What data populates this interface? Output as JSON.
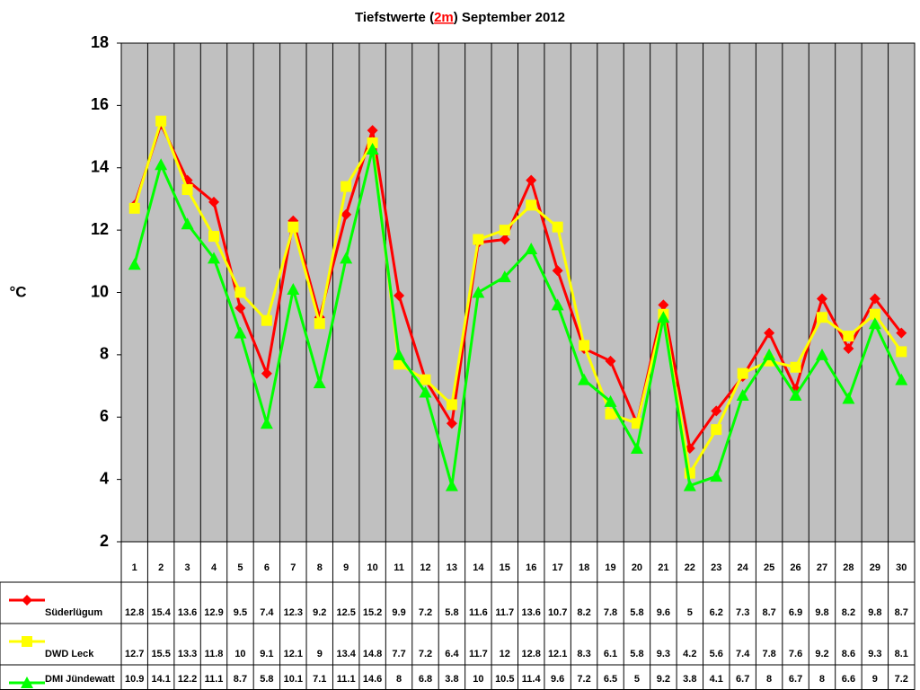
{
  "chart_data": {
    "type": "line",
    "title_prefix": "Tiefstwerte (",
    "title_highlight": "2m",
    "title_suffix": ") September 2012",
    "y_label": "°C",
    "categories": [
      "1",
      "2",
      "3",
      "4",
      "5",
      "6",
      "7",
      "8",
      "9",
      "10",
      "11",
      "12",
      "13",
      "14",
      "15",
      "16",
      "17",
      "18",
      "19",
      "20",
      "21",
      "22",
      "23",
      "24",
      "25",
      "26",
      "27",
      "28",
      "29",
      "30"
    ],
    "ylim": [
      2,
      18
    ],
    "yticks": [
      2,
      4,
      6,
      8,
      10,
      12,
      14,
      16,
      18
    ],
    "plot_background": "#c0c0c0",
    "series": [
      {
        "name": "Süderlügum",
        "color": "#ff0000",
        "marker": "diamond",
        "values": [
          12.8,
          15.4,
          13.6,
          12.9,
          9.5,
          7.4,
          12.3,
          9.2,
          12.5,
          15.2,
          9.9,
          7.2,
          5.8,
          11.6,
          11.7,
          13.6,
          10.7,
          8.2,
          7.8,
          5.8,
          9.6,
          5,
          6.2,
          7.3,
          8.7,
          6.9,
          9.8,
          8.2,
          9.8,
          8.7
        ]
      },
      {
        "name": "DWD Leck",
        "color": "#ffff00",
        "marker": "square",
        "values": [
          12.7,
          15.5,
          13.3,
          11.8,
          10,
          9.1,
          12.1,
          9,
          13.4,
          14.8,
          7.7,
          7.2,
          6.4,
          11.7,
          12,
          12.8,
          12.1,
          8.3,
          6.1,
          5.8,
          9.3,
          4.2,
          5.6,
          7.4,
          7.8,
          7.6,
          9.2,
          8.6,
          9.3,
          8.1
        ]
      },
      {
        "name": "DMI Jündewatt",
        "color": "#00ff00",
        "marker": "triangle",
        "values": [
          10.9,
          14.1,
          12.2,
          11.1,
          8.7,
          5.8,
          10.1,
          7.1,
          11.1,
          14.6,
          8,
          6.8,
          3.8,
          10,
          10.5,
          11.4,
          9.6,
          7.2,
          6.5,
          5,
          9.2,
          3.8,
          4.1,
          6.7,
          8,
          6.7,
          8,
          6.6,
          9,
          7.2
        ]
      }
    ]
  }
}
